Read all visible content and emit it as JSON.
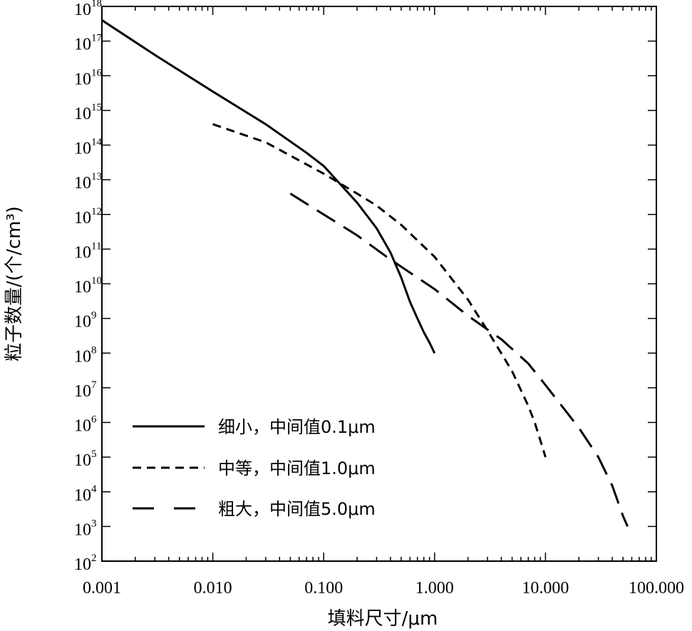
{
  "chart_data": {
    "type": "line",
    "xlabel": "填料尺寸/μm",
    "ylabel": "粒子数量/(个/cm³)",
    "x_scale": "log",
    "y_scale": "log",
    "xlim": [
      0.001,
      100
    ],
    "ylim": [
      100,
      1e+18
    ],
    "x_ticks": [
      {
        "value": 0.001,
        "label": "0.001"
      },
      {
        "value": 0.01,
        "label": "0.010"
      },
      {
        "value": 0.1,
        "label": "0.100"
      },
      {
        "value": 1,
        "label": "1.000"
      },
      {
        "value": 10,
        "label": "10.000"
      },
      {
        "value": 100,
        "label": "100.000"
      }
    ],
    "y_ticks": [
      {
        "value": 100.0,
        "base": "10",
        "exp": "2"
      },
      {
        "value": 1000.0,
        "base": "10",
        "exp": "3"
      },
      {
        "value": 10000.0,
        "base": "10",
        "exp": "4"
      },
      {
        "value": 100000.0,
        "base": "10",
        "exp": "5"
      },
      {
        "value": 1000000.0,
        "base": "10",
        "exp": "6"
      },
      {
        "value": 10000000.0,
        "base": "10",
        "exp": "7"
      },
      {
        "value": 100000000.0,
        "base": "10",
        "exp": "8"
      },
      {
        "value": 1000000000.0,
        "base": "10",
        "exp": "9"
      },
      {
        "value": 10000000000.0,
        "base": "10",
        "exp": "10"
      },
      {
        "value": 100000000000.0,
        "base": "10",
        "exp": "11"
      },
      {
        "value": 1000000000000.0,
        "base": "10",
        "exp": "12"
      },
      {
        "value": 10000000000000.0,
        "base": "10",
        "exp": "13"
      },
      {
        "value": 100000000000000.0,
        "base": "10",
        "exp": "14"
      },
      {
        "value": 1000000000000000.0,
        "base": "10",
        "exp": "15"
      },
      {
        "value": 1e+16,
        "base": "10",
        "exp": "16"
      },
      {
        "value": 1e+17,
        "base": "10",
        "exp": "17"
      },
      {
        "value": 1e+18,
        "base": "10",
        "exp": "18"
      }
    ],
    "grid": false,
    "legend_position": "bottom-left",
    "series": [
      {
        "name": "细小，中间值0.1μm",
        "line_style": "solid",
        "x": [
          0.001,
          0.003,
          0.01,
          0.03,
          0.07,
          0.1,
          0.15,
          0.2,
          0.3,
          0.4,
          0.5,
          0.6,
          0.7,
          0.8,
          0.9,
          1.0
        ],
        "y": [
          4e+17,
          4e+16,
          3500000000000000.0,
          400000000000000.0,
          60000000000000.0,
          25000000000000.0,
          6000000000000.0,
          2200000000000.0,
          400000000000.0,
          80000000000.0,
          15000000000.0,
          3000000000.0,
          1000000000.0,
          400000000.0,
          200000000.0,
          100000000.0
        ]
      },
      {
        "name": "中等，中间值1.0μm",
        "line_style": "dashed",
        "x": [
          0.01,
          0.03,
          0.1,
          0.2,
          0.3,
          0.5,
          1.0,
          2.0,
          3.0,
          5.0,
          7.0,
          8.0,
          9.0,
          10.0
        ],
        "y": [
          400000000000000.0,
          120000000000000.0,
          15000000000000.0,
          4000000000000.0,
          1800000000000.0,
          500000000000.0,
          60000000000.0,
          3500000000.0,
          450000000.0,
          30000000.0,
          3000000.0,
          1000000.0,
          300000.0,
          100000.0
        ]
      },
      {
        "name": "粗大，中间值5.0μm",
        "line_style": "long-dashed",
        "x": [
          0.05,
          0.1,
          0.2,
          0.4,
          1.0,
          2.0,
          4.0,
          7.0,
          10.0,
          20.0,
          30.0,
          40.0,
          50.0,
          55.0
        ],
        "y": [
          4000000000000.0,
          1000000000000.0,
          250000000000.0,
          50000000000.0,
          7000000000.0,
          1200000000.0,
          250000000.0,
          50000000.0,
          12000000.0,
          700000.0,
          100000.0,
          15000.0,
          2000.0,
          1000.0
        ]
      }
    ]
  }
}
